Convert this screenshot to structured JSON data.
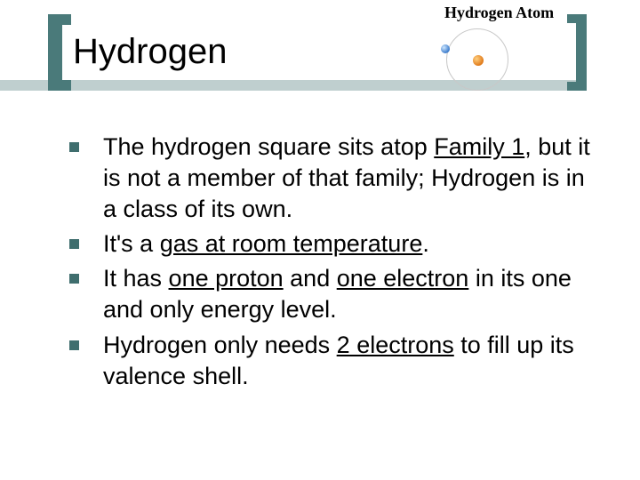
{
  "colors": {
    "bracket": "#4a7a7a",
    "bar": "#bfcfcf",
    "bullet": "#3f6e6e",
    "text": "#000000",
    "background": "#ffffff",
    "nucleus": "#e07a1a",
    "electron": "#3a7acb",
    "orbit": "#c8c8c8"
  },
  "atom_diagram": {
    "label": "Hydrogen Atom",
    "nucleus_count": 1,
    "electron_count": 1
  },
  "title": "Hydrogen",
  "bullets": {
    "b1": {
      "t1": "The hydrogen square sits atop ",
      "u1": "Family 1",
      "t2": ", but it is not a member of that family; Hydrogen is in a class of its own."
    },
    "b2": {
      "t1": "It's a ",
      "u1": "gas at room temperature",
      "t2": "."
    },
    "b3": {
      "t1": "It has ",
      "u1": "one proton",
      "t2": " and ",
      "u2": "one electron",
      "t3": " in its one and only energy level."
    },
    "b4": {
      "t1": "Hydrogen only needs ",
      "u1": "2 electrons",
      "t2": " to fill up its valence shell."
    }
  }
}
